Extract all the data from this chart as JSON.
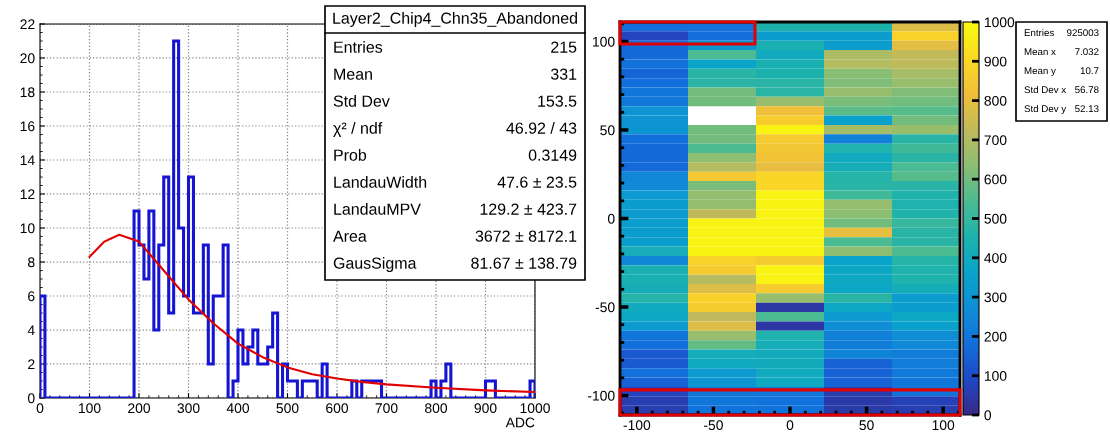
{
  "chart_data": [
    {
      "type": "histogram",
      "xlabel": "ADC",
      "bins": [
        0,
        10,
        20,
        30,
        40,
        50,
        60,
        70,
        80,
        90,
        100,
        110,
        120,
        130,
        140,
        150,
        160,
        170,
        180,
        190,
        200,
        210,
        220,
        230,
        240,
        250,
        260,
        270,
        280,
        290,
        300,
        310,
        320,
        330,
        340,
        350,
        360,
        370,
        380,
        390,
        400,
        410,
        420,
        430,
        440,
        450,
        460,
        470,
        480,
        490,
        500,
        510,
        520,
        530,
        540,
        550,
        560,
        570,
        580,
        590,
        600,
        610,
        620,
        630,
        640,
        650,
        660,
        670,
        680,
        690,
        700,
        710,
        720,
        730,
        740,
        750,
        760,
        770,
        780,
        790,
        800,
        810,
        820,
        830,
        840,
        850,
        860,
        870,
        880,
        890,
        900,
        910,
        920,
        930,
        940,
        950,
        960,
        970,
        980,
        990,
        1000
      ],
      "series": [
        {
          "type": "histogram",
          "color": "#1414d2",
          "values": [
            6,
            0,
            0,
            0,
            0,
            0,
            0,
            0,
            0,
            0,
            0,
            0,
            0,
            0,
            0,
            0,
            0,
            0,
            0,
            11,
            9,
            7,
            11,
            4,
            9,
            13,
            5,
            21,
            10,
            6,
            13,
            5,
            5,
            9,
            2,
            6,
            6,
            9,
            0,
            1,
            4,
            2,
            3,
            4,
            2,
            2,
            3,
            5,
            0,
            2,
            1,
            1,
            0,
            1,
            1,
            1,
            0,
            2,
            0,
            0,
            0,
            0,
            0,
            1,
            0,
            1,
            1,
            1,
            1,
            0,
            0,
            0,
            0,
            0,
            0,
            0,
            0,
            0,
            0,
            1,
            0,
            1,
            2,
            0,
            0,
            0,
            0,
            0,
            0,
            0,
            1,
            1,
            0,
            0,
            0,
            0,
            0,
            0,
            0,
            1
          ]
        },
        {
          "type": "line",
          "color": "#e00000",
          "x": [
            100,
            130,
            160,
            200,
            250,
            300,
            350,
            400,
            450,
            500,
            550,
            600,
            650,
            700,
            800,
            900,
            1000
          ],
          "values": [
            8.3,
            9.2,
            9.6,
            9.2,
            7.5,
            5.8,
            4.4,
            3.2,
            2.4,
            1.8,
            1.4,
            1.15,
            0.95,
            0.8,
            0.6,
            0.45,
            0.35
          ]
        }
      ],
      "xlim": [
        0,
        1000
      ],
      "ylim": [
        0,
        22
      ],
      "xticks": [
        0,
        100,
        200,
        300,
        400,
        500,
        600,
        700,
        800,
        900,
        1000
      ],
      "yticks": [
        0,
        2,
        4,
        6,
        8,
        10,
        12,
        14,
        16,
        18,
        20,
        22
      ],
      "grid": true,
      "annotations": [
        "Layer2_Chip4_Chn35_Abandoned",
        "Entries",
        "215",
        "Mean",
        "331",
        "Std Dev",
        "153.5",
        "χ² / ndf",
        "46.92 / 43",
        "Prob",
        "0.3149",
        "LandauWidth",
        "47.6 ± 23.5",
        "LandauMPV",
        "129.2 ± 423.7",
        "Area",
        "3672 ± 8172.1",
        "GausSigma",
        "81.67 ± 138.79"
      ]
    },
    {
      "type": "heatmap",
      "x": [
        -88.8,
        -44.4,
        0,
        44.4,
        88.8
      ],
      "y": [
        108.4,
        103.1,
        97.8,
        92.5,
        87.2,
        81.9,
        76.6,
        71.4,
        66.1,
        60.8,
        55.5,
        50.2,
        44.9,
        39.6,
        34.4,
        29.1,
        23.8,
        18.5,
        13.2,
        7.9,
        2.6,
        -2.6,
        -7.9,
        -13.2,
        -18.5,
        -23.8,
        -29.1,
        -34.4,
        -39.6,
        -44.9,
        -50.2,
        -55.5,
        -60.8,
        -66.1,
        -71.4,
        -76.6,
        -81.9,
        -87.2,
        -92.5,
        -97.8,
        -103.1,
        -108.4
      ],
      "cells": [
        [
          180,
          180,
          450,
          450,
          780
        ],
        [
          80,
          180,
          330,
          330,
          880
        ],
        [
          170,
          300,
          440,
          330,
          790
        ],
        [
          170,
          540,
          400,
          690,
          730
        ],
        [
          190,
          360,
          440,
          707,
          720
        ],
        [
          160,
          480,
          450,
          630,
          680
        ],
        [
          180,
          480,
          480,
          620,
          660
        ],
        [
          200,
          600,
          480,
          660,
          620
        ],
        [
          210,
          600,
          660,
          610,
          600
        ],
        [
          290,
          null,
          820,
          570,
          560
        ],
        [
          290,
          null,
          870,
          340,
          600
        ],
        [
          300,
          600,
          980,
          680,
          660
        ],
        [
          180,
          600,
          860,
          230,
          480
        ],
        [
          170,
          540,
          840,
          460,
          520
        ],
        [
          170,
          640,
          830,
          400,
          480
        ],
        [
          170,
          707,
          800,
          420,
          540
        ],
        [
          250,
          850,
          900,
          470,
          560
        ],
        [
          260,
          610,
          900,
          480,
          480
        ],
        [
          320,
          650,
          980,
          520,
          460
        ],
        [
          330,
          650,
          980,
          650,
          460
        ],
        [
          320,
          720,
          980,
          640,
          460
        ],
        [
          330,
          980,
          980,
          600,
          500
        ],
        [
          330,
          980,
          980,
          800,
          480
        ],
        [
          330,
          980,
          980,
          540,
          480
        ],
        [
          420,
          980,
          980,
          640,
          540
        ],
        [
          250,
          880,
          860,
          360,
          470
        ],
        [
          440,
          860,
          980,
          380,
          460
        ],
        [
          440,
          707,
          980,
          390,
          460
        ],
        [
          420,
          780,
          860,
          380,
          420
        ],
        [
          470,
          880,
          660,
          480,
          330
        ],
        [
          400,
          860,
          40,
          380,
          330
        ],
        [
          380,
          720,
          540,
          320,
          380
        ],
        [
          320,
          780,
          40,
          270,
          340
        ],
        [
          200,
          660,
          460,
          230,
          270
        ],
        [
          180,
          580,
          420,
          220,
          260
        ],
        [
          130,
          420,
          410,
          240,
          220
        ],
        [
          130,
          400,
          410,
          150,
          220
        ],
        [
          180,
          320,
          400,
          150,
          210
        ],
        [
          150,
          300,
          390,
          150,
          200
        ],
        [
          80,
          200,
          200,
          60,
          190
        ],
        [
          60,
          200,
          190,
          50,
          70
        ],
        [
          60,
          190,
          190,
          50,
          60
        ]
      ],
      "xlim": [
        -111,
        111
      ],
      "ylim": [
        -111,
        111
      ],
      "xticks": [
        -100,
        -50,
        0,
        50,
        100
      ],
      "yticks": [
        -100,
        -50,
        0,
        50,
        100
      ],
      "clim": [
        0,
        1000
      ],
      "cticks": [
        0,
        100,
        200,
        300,
        400,
        500,
        600,
        700,
        800,
        900,
        1000
      ],
      "annotations": [
        "Entries",
        "925003",
        "Mean x",
        "7.032",
        "Mean y",
        "10.7",
        "Std Dev x",
        "56.78",
        "Std Dev y",
        "52.13"
      ]
    }
  ]
}
